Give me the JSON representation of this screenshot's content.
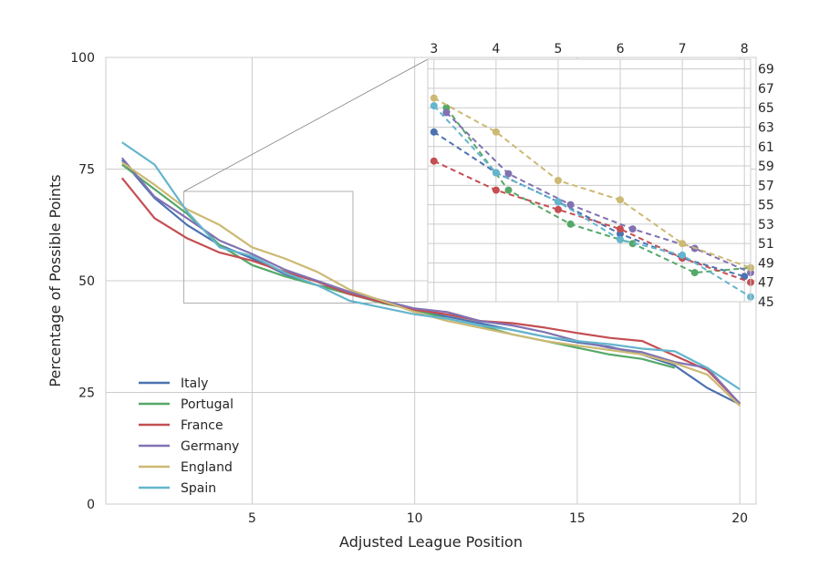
{
  "colors": {
    "Italy": "#4c72b0",
    "Portugal": "#55a868",
    "France": "#c44e52",
    "Germany": "#8172b2",
    "England": "#ccb974",
    "Spain": "#64b5cd",
    "grid": "#cccccc",
    "connector": "#808080"
  },
  "chart_data": [
    {
      "type": "line",
      "xlabel": "Adjusted League Position",
      "ylabel": "Percentage of Possible Points",
      "xlim": [
        0.5,
        20.5
      ],
      "ylim": [
        0,
        100
      ],
      "xticks": [
        5,
        10,
        15,
        20
      ],
      "yticks": [
        0,
        25,
        50,
        75,
        100
      ],
      "grid": true,
      "legend_position": "lower-left",
      "series": [
        {
          "name": "Italy",
          "x": [
            1,
            2,
            3,
            4,
            5,
            6,
            7,
            8,
            9,
            10,
            11,
            12,
            13,
            14,
            15,
            16,
            17,
            18,
            19,
            20
          ],
          "values": [
            77,
            68.5,
            62.5,
            58,
            55,
            51.5,
            49,
            47.5,
            45.3,
            43.5,
            42,
            40.5,
            39,
            37.5,
            36.2,
            35.2,
            33.5,
            31,
            26,
            22.3
          ]
        },
        {
          "name": "Portugal",
          "x": [
            1,
            2,
            3,
            4,
            5,
            6,
            7,
            8,
            9,
            10,
            11,
            12,
            13,
            14,
            15,
            16,
            17,
            18
          ],
          "values": [
            76,
            70.5,
            65,
            58,
            53.5,
            51,
            49,
            47,
            45,
            43.5,
            41.5,
            40,
            38,
            36.5,
            35,
            33.5,
            32.5,
            30.5
          ]
        },
        {
          "name": "France",
          "x": [
            1,
            2,
            3,
            4,
            5,
            6,
            7,
            8,
            9,
            10,
            11,
            12,
            13,
            14,
            15,
            16,
            17,
            18,
            19,
            20
          ],
          "values": [
            73,
            64,
            59.5,
            56.3,
            54.5,
            52,
            49.8,
            47,
            45.2,
            43.5,
            42.5,
            41,
            40.5,
            39.5,
            38.3,
            37.2,
            36.5,
            33.2,
            30,
            22.5
          ]
        },
        {
          "name": "Germany",
          "x": [
            1,
            2,
            3,
            4,
            5,
            6,
            7,
            8,
            9,
            10,
            11,
            12,
            13,
            14,
            15,
            16,
            17,
            18,
            19,
            20
          ],
          "values": [
            77.5,
            68.8,
            64,
            59,
            56,
            52.5,
            50,
            47.5,
            45.6,
            43.8,
            43,
            41,
            40,
            38.5,
            36.5,
            35,
            34,
            31.8,
            30.5,
            22.5
          ]
        },
        {
          "name": "England",
          "x": [
            1,
            2,
            3,
            4,
            5,
            6,
            7,
            8,
            9,
            10,
            11,
            12,
            13,
            14,
            15,
            16,
            17,
            18,
            19,
            20
          ],
          "values": [
            76.5,
            71.5,
            66,
            62.5,
            57.5,
            55,
            52,
            48,
            45.5,
            43,
            41,
            39.5,
            38,
            36.5,
            35.5,
            34.5,
            33.5,
            31.5,
            29,
            22
          ]
        },
        {
          "name": "Spain",
          "x": [
            1,
            2,
            3,
            4,
            5,
            6,
            7,
            8,
            9,
            10,
            11,
            12,
            13,
            14,
            15,
            16,
            17,
            18,
            19,
            20
          ],
          "values": [
            81,
            76,
            65.5,
            57.5,
            55.5,
            51.8,
            49,
            45.5,
            44,
            42.5,
            41.5,
            40,
            39,
            37.5,
            36.5,
            35.8,
            34.8,
            34.2,
            30.5,
            25.7
          ]
        }
      ]
    },
    {
      "type": "line",
      "inset": true,
      "line_style": "dashed",
      "markers": true,
      "xlim": [
        2.9,
        8.1
      ],
      "ylim": [
        45,
        70
      ],
      "xticks": [
        3,
        4,
        5,
        6,
        7,
        8
      ],
      "yticks": [
        45,
        47,
        49,
        51,
        53,
        55,
        57,
        59,
        61,
        63,
        65,
        67,
        69
      ],
      "xticks_position": "top",
      "yticks_position": "right",
      "grid": true,
      "zoom_region": {
        "x": [
          2.9,
          8.1
        ],
        "y": [
          45,
          70
        ]
      },
      "series": [
        {
          "name": "Italy",
          "x": [
            3,
            4,
            5,
            6,
            7,
            8
          ],
          "values": [
            62.5,
            58.3,
            55.3,
            52,
            49.5,
            47.6
          ]
        },
        {
          "name": "Portugal",
          "x": [
            3.2,
            4.2,
            5.2,
            6.2,
            7.2,
            8.1
          ],
          "values": [
            65,
            56.5,
            53,
            51,
            48,
            48.5
          ]
        },
        {
          "name": "France",
          "x": [
            3,
            4,
            5,
            6,
            7,
            8.1
          ],
          "values": [
            59.5,
            56.5,
            54.5,
            52.5,
            49.5,
            47
          ]
        },
        {
          "name": "Germany",
          "x": [
            3.2,
            4.2,
            5.2,
            6.2,
            7.2,
            8.1
          ],
          "values": [
            64.5,
            58.2,
            55,
            52.5,
            50.5,
            48
          ]
        },
        {
          "name": "England",
          "x": [
            3,
            4,
            5,
            6,
            7,
            8.1
          ],
          "values": [
            66,
            62.5,
            57.5,
            55.5,
            51,
            48.5
          ]
        },
        {
          "name": "Spain",
          "x": [
            3,
            4,
            5,
            6,
            7,
            8.1
          ],
          "values": [
            65.2,
            58.3,
            55.3,
            51.4,
            49.8,
            45.5
          ]
        }
      ]
    }
  ]
}
